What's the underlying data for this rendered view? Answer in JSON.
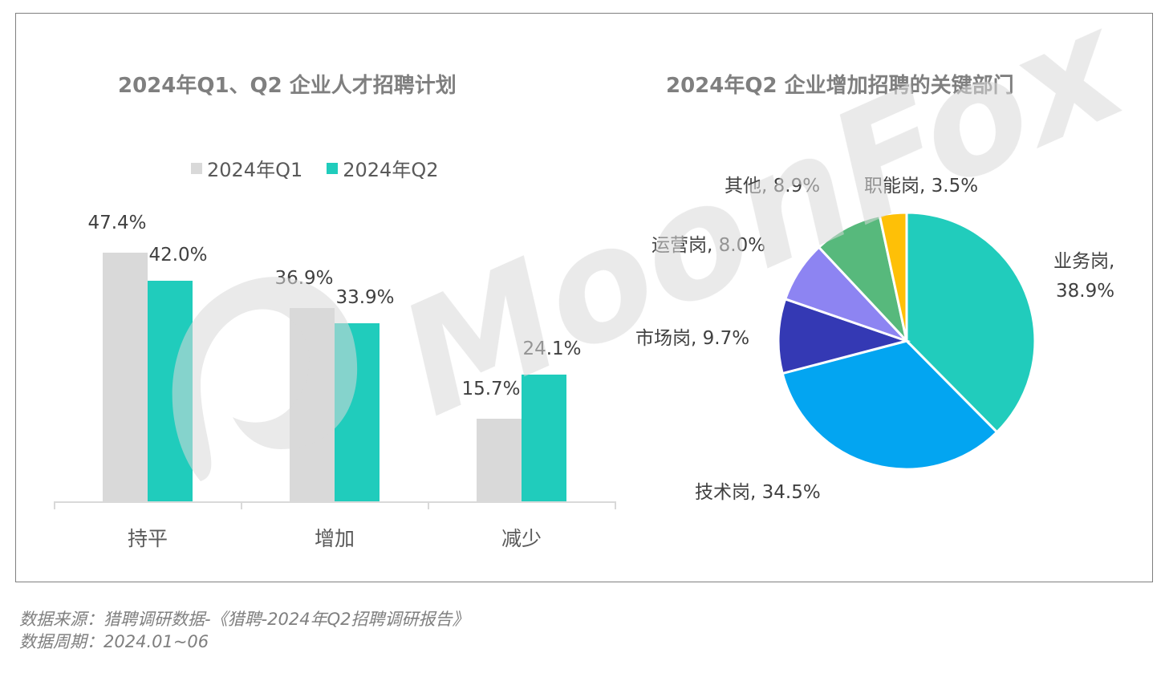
{
  "watermark": {
    "text": "MoonFox"
  },
  "left_chart": {
    "title": "2024年Q1、Q2 企业人才招聘计划",
    "legend": [
      {
        "label": "2024年Q1",
        "color": "#d9d9d9"
      },
      {
        "label": "2024年Q2",
        "color": "#20ccbc"
      }
    ],
    "categories": [
      "持平",
      "增加",
      "减少"
    ],
    "q1_labels": [
      "47.4%",
      "36.9%",
      "15.7%"
    ],
    "q2_labels": [
      "42.0%",
      "33.9%",
      "24.1%"
    ]
  },
  "right_chart": {
    "title": "2024年Q2 企业增加招聘的关键部门",
    "slices": [
      {
        "name": "业务岗",
        "label_line1": "业务岗,",
        "label_line2": "38.9%",
        "value": 38.9,
        "color": "#21ccbc"
      },
      {
        "name": "技术岗",
        "label": "技术岗, 34.5%",
        "value": 34.5,
        "color": "#03a5f1"
      },
      {
        "name": "市场岗",
        "label": "市场岗, 9.7%",
        "value": 9.7,
        "color": "#3439b4"
      },
      {
        "name": "运营岗",
        "label": "运营岗, 8.0%",
        "value": 8.0,
        "color": "#8d84f2"
      },
      {
        "name": "其他",
        "label": "其他, 8.9%",
        "value": 8.9,
        "color": "#57b97c"
      },
      {
        "name": "职能岗",
        "label": "职能岗, 3.5%",
        "value": 3.5,
        "color": "#fec007"
      }
    ]
  },
  "footer": {
    "source": "数据来源：猎聘调研数据-《猎聘-2024年Q2招聘调研报告》",
    "period": "数据周期：2024.01~06"
  },
  "chart_data": [
    {
      "type": "bar",
      "title": "2024年Q1、Q2 企业人才招聘计划",
      "categories": [
        "持平",
        "增加",
        "减少"
      ],
      "series": [
        {
          "name": "2024年Q1",
          "values": [
            47.4,
            36.9,
            15.7
          ],
          "color": "#d9d9d9"
        },
        {
          "name": "2024年Q2",
          "values": [
            42.0,
            33.9,
            24.1
          ],
          "color": "#20ccbc"
        }
      ],
      "xlabel": "",
      "ylabel": "",
      "ylim": [
        0,
        50
      ],
      "unit": "%",
      "grid": false,
      "legend_position": "top"
    },
    {
      "type": "pie",
      "title": "2024年Q2 企业增加招聘的关键部门",
      "categories": [
        "业务岗",
        "技术岗",
        "市场岗",
        "运营岗",
        "其他",
        "职能岗"
      ],
      "values": [
        38.9,
        34.5,
        9.7,
        8.0,
        8.9,
        3.5
      ],
      "unit": "%",
      "colors": [
        "#21ccbc",
        "#03a5f1",
        "#3439b4",
        "#8d84f2",
        "#57b97c",
        "#fec007"
      ]
    }
  ]
}
